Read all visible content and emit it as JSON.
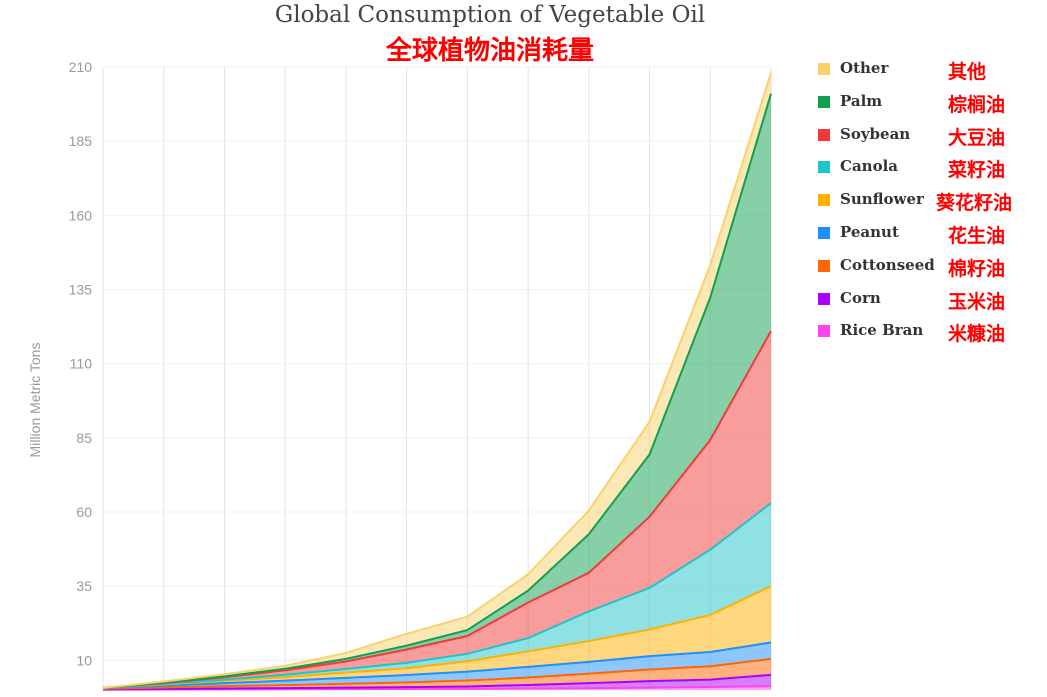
{
  "title_en": "Global Consumption of Vegetable Oil",
  "title_zh": "全球植物油消耗量",
  "chart_data": {
    "type": "area",
    "stacked": true,
    "ylabel": "Million Metric Tons",
    "ylim": [
      0,
      210
    ],
    "yticks": [
      10,
      35,
      60,
      85,
      110,
      135,
      160,
      185,
      210
    ],
    "x_points": 12,
    "grid": true,
    "legend_position": "right",
    "series": [
      {
        "name": "Rice Bran",
        "name_zh": "米糠油",
        "color": "#ff44ee",
        "values": [
          0.1,
          0.15,
          0.2,
          0.25,
          0.3,
          0.35,
          0.4,
          0.5,
          0.6,
          0.8,
          1.0,
          1.3
        ]
      },
      {
        "name": "Corn",
        "name_zh": "玉米油",
        "color": "#aa00ff",
        "values": [
          0.1,
          0.2,
          0.3,
          0.4,
          0.5,
          0.6,
          0.8,
          1.2,
          1.7,
          2.2,
          2.5,
          3.8
        ]
      },
      {
        "name": "Cottonseed",
        "name_zh": "棉籽油",
        "color": "#ff6600",
        "values": [
          0.2,
          0.5,
          0.8,
          1.0,
          1.3,
          1.6,
          2.0,
          2.5,
          3.2,
          3.9,
          4.5,
          5.4
        ]
      },
      {
        "name": "Peanut",
        "name_zh": "花生油",
        "color": "#1e90ff",
        "values": [
          0.2,
          0.6,
          1.0,
          1.5,
          2.0,
          2.5,
          3.0,
          3.6,
          4.0,
          4.5,
          4.8,
          5.5
        ]
      },
      {
        "name": "Sunflower",
        "name_zh": "葵花籽油",
        "color": "#ffb000",
        "values": [
          0.1,
          0.4,
          0.8,
          1.2,
          1.8,
          2.3,
          3.5,
          5.2,
          7.0,
          9.0,
          12.5,
          19.0
        ]
      },
      {
        "name": "Canola",
        "name_zh": "菜籽油",
        "color": "#1fc4c8",
        "values": [
          0.0,
          0.2,
          0.4,
          0.8,
          1.2,
          1.8,
          2.5,
          4.5,
          10.0,
          14.0,
          22.0,
          28.0
        ]
      },
      {
        "name": "Soybean",
        "name_zh": "大豆油",
        "color": "#f23a3a",
        "values": [
          0.0,
          0.3,
          0.8,
          1.5,
          2.5,
          4.5,
          6.0,
          12.0,
          13.0,
          24.0,
          37.0,
          58.0
        ]
      },
      {
        "name": "Palm",
        "name_zh": "棕榈油",
        "color": "#0fa050",
        "values": [
          0.0,
          0.2,
          0.3,
          0.5,
          0.9,
          1.3,
          2.0,
          4.0,
          13.0,
          21.0,
          48.0,
          80.0
        ]
      },
      {
        "name": "Other",
        "name_zh": "其他",
        "color": "#f9d26a",
        "values": [
          0.0,
          0.3,
          0.7,
          1.0,
          2.0,
          4.0,
          4.5,
          5.5,
          8.0,
          11.0,
          11.0,
          7.0
        ]
      }
    ]
  }
}
